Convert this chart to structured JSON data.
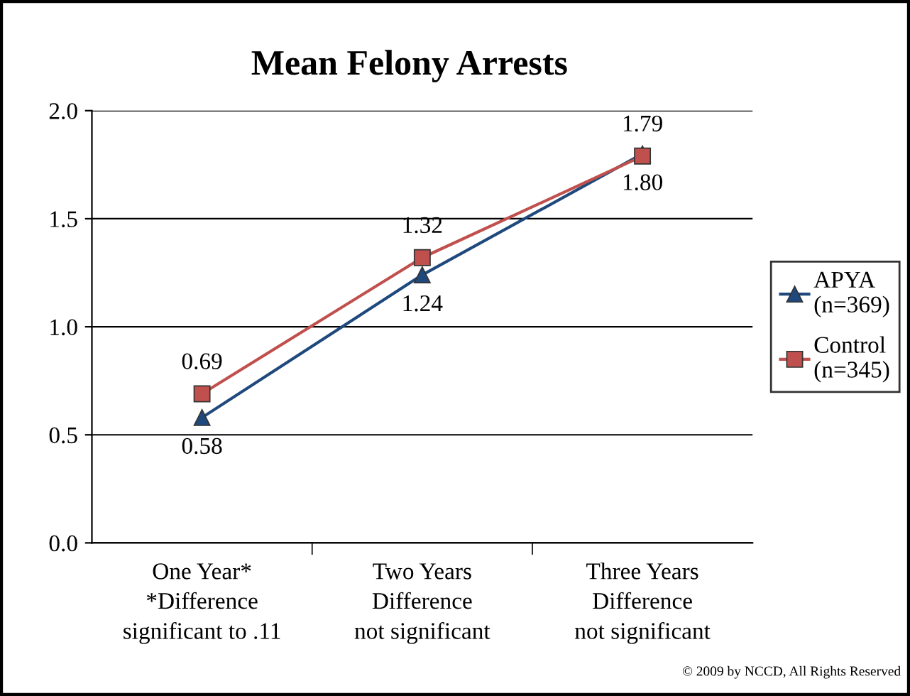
{
  "chart_data": {
    "type": "line",
    "title": "Mean Felony Arrests",
    "categories": [
      "One Year*\n*Difference\nsignificant to .11",
      "Two Years\nDifference\nnot significant",
      "Three Years\nDifference\nnot significant"
    ],
    "series": [
      {
        "name": "APYA\n(n=369)",
        "color": "#1f497d",
        "marker": "triangle",
        "values": [
          0.58,
          1.24,
          1.8
        ],
        "value_labels": [
          "0.58",
          "1.24",
          "1.80"
        ]
      },
      {
        "name": "Control\n(n=345)",
        "color": "#c0504d",
        "marker": "square",
        "values": [
          0.69,
          1.32,
          1.79
        ],
        "value_labels": [
          "0.69",
          "1.32",
          "1.79"
        ]
      }
    ],
    "ylim": [
      0,
      2
    ],
    "yticks": [
      {
        "value": 0,
        "label": "0.0"
      },
      {
        "value": 0.5,
        "label": "0.5"
      },
      {
        "value": 1,
        "label": "1.0"
      },
      {
        "value": 1.5,
        "label": "1.5"
      },
      {
        "value": 2,
        "label": "2.0"
      }
    ],
    "grid": "y",
    "legend": "right",
    "line_style": "solid",
    "annotations": [
      "© 2009 by NCCD, All Rights Reserved"
    ]
  }
}
